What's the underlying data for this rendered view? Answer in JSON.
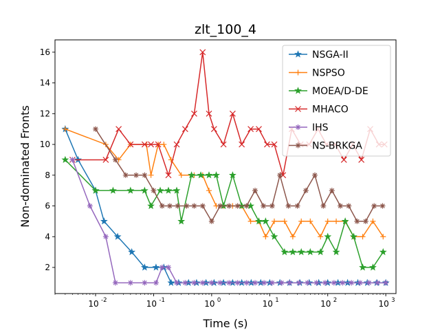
{
  "chart_data": {
    "type": "line",
    "title": "zlt_100_4",
    "xlabel": "Time (s)",
    "ylabel": "Non-dominated Fronts",
    "xscale": "log",
    "xlim": [
      0.002,
      1500
    ],
    "ylim": [
      0.3,
      16.8
    ],
    "xticks": [
      0.01,
      0.1,
      1,
      10,
      100,
      1000
    ],
    "xtick_labels": [
      "10",
      "10",
      "10",
      "10",
      "10",
      "10"
    ],
    "xtick_exponents": [
      "-2",
      "-1",
      "0",
      "1",
      "2",
      "3"
    ],
    "yticks": [
      2,
      4,
      6,
      8,
      10,
      12,
      14,
      16
    ],
    "ytick_labels": [
      "2",
      "4",
      "6",
      "8",
      "10",
      "12",
      "14",
      "16"
    ],
    "grid": false,
    "legend_position": "top-right",
    "series": [
      {
        "name": "NSGA-II",
        "color": "#1f77b4",
        "x": [
          0.003,
          0.005,
          0.01,
          0.014,
          0.024,
          0.042,
          0.07,
          0.11,
          0.15,
          0.2,
          0.27,
          0.4,
          0.55,
          0.8,
          1.1,
          1.6,
          2.3,
          3.3,
          4.8,
          7,
          10,
          15,
          22,
          33,
          48,
          70,
          100,
          150,
          220,
          330,
          480,
          700,
          1000
        ],
        "y": [
          11,
          9,
          7,
          5,
          4,
          3,
          2,
          2,
          2,
          1,
          1,
          1,
          1,
          1,
          1,
          1,
          1,
          1,
          1,
          1,
          1,
          1,
          1,
          1,
          1,
          1,
          1,
          1,
          1,
          1,
          1,
          1,
          1
        ]
      },
      {
        "name": "NSPSO",
        "color": "#ff7f0e",
        "x": [
          0.003,
          0.015,
          0.025,
          0.04,
          0.075,
          0.09,
          0.12,
          0.15,
          0.2,
          0.3,
          0.5,
          0.7,
          0.9,
          1.2,
          1.6,
          2.3,
          3.3,
          4.7,
          6.5,
          8.5,
          12,
          18,
          25,
          35,
          50,
          75,
          100,
          140,
          200,
          280,
          400,
          600,
          900
        ],
        "y": [
          11,
          10,
          9,
          10,
          10,
          8,
          10,
          10,
          9,
          8,
          8,
          8,
          7,
          6,
          6,
          6,
          6,
          5,
          5,
          4,
          5,
          5,
          4,
          5,
          5,
          4,
          5,
          5,
          5,
          4,
          4,
          5,
          4
        ]
      },
      {
        "name": "MOEA/D-DE",
        "color": "#2ca02c",
        "x": [
          0.003,
          0.01,
          0.02,
          0.04,
          0.07,
          0.09,
          0.13,
          0.18,
          0.25,
          0.3,
          0.45,
          0.65,
          0.9,
          1.2,
          1.6,
          2.3,
          3.3,
          4.7,
          6.5,
          8.5,
          12,
          18,
          25,
          35,
          50,
          75,
          100,
          140,
          200,
          280,
          400,
          600,
          900
        ],
        "y": [
          9,
          7,
          7,
          7,
          7,
          6,
          7,
          7,
          7,
          5,
          8,
          8,
          8,
          8,
          6,
          8,
          6,
          6,
          5,
          5,
          4,
          3,
          3,
          3,
          3,
          3,
          4,
          3,
          5,
          4,
          2,
          2,
          3
        ]
      },
      {
        "name": "MHACO",
        "color": "#d62728",
        "x": [
          0.004,
          0.015,
          0.025,
          0.04,
          0.07,
          0.09,
          0.12,
          0.18,
          0.25,
          0.35,
          0.5,
          0.7,
          0.9,
          1.1,
          1.6,
          2.3,
          3.3,
          4.7,
          6.5,
          9,
          12,
          17,
          24,
          34,
          48,
          68,
          95,
          135,
          190,
          270,
          380,
          540,
          760,
          950
        ],
        "y": [
          9,
          9,
          11,
          10,
          10,
          10,
          10,
          8,
          10,
          11,
          12,
          16,
          12,
          11,
          10,
          12,
          10,
          11,
          11,
          10,
          10,
          8,
          11,
          10,
          10,
          11,
          10,
          10,
          9,
          10,
          9,
          11,
          10,
          10
        ]
      },
      {
        "name": "IHS",
        "color": "#9467bd",
        "x": [
          0.004,
          0.008,
          0.015,
          0.022,
          0.04,
          0.07,
          0.11,
          0.14,
          0.18,
          0.25,
          0.35,
          0.5,
          0.7,
          1,
          1.4,
          2,
          2.8,
          4,
          5.6,
          8,
          11,
          16,
          22,
          32,
          45,
          64,
          90,
          128,
          180,
          256,
          360,
          512,
          720,
          1000
        ],
        "y": [
          9,
          6,
          4,
          1,
          1,
          1,
          1,
          2,
          2,
          1,
          1,
          1,
          1,
          1,
          1,
          1,
          1,
          1,
          1,
          1,
          1,
          1,
          1,
          1,
          1,
          1,
          1,
          1,
          1,
          1,
          1,
          1,
          1,
          1
        ]
      },
      {
        "name": "NS-BRKGA",
        "color": "#8c564b",
        "x": [
          0.01,
          0.022,
          0.033,
          0.05,
          0.07,
          0.1,
          0.14,
          0.19,
          0.26,
          0.37,
          0.5,
          0.7,
          1,
          1.4,
          2,
          2.8,
          4,
          5.6,
          7.8,
          11,
          15,
          21,
          30,
          42,
          60,
          84,
          118,
          165,
          230,
          320,
          450,
          630,
          880
        ],
        "y": [
          11,
          9,
          8,
          8,
          8,
          7,
          6,
          6,
          6,
          6,
          6,
          6,
          5,
          6,
          6,
          6,
          6,
          7,
          6,
          6,
          8,
          6,
          6,
          7,
          8,
          6,
          7,
          6,
          6,
          5,
          5,
          6,
          6
        ]
      }
    ]
  }
}
